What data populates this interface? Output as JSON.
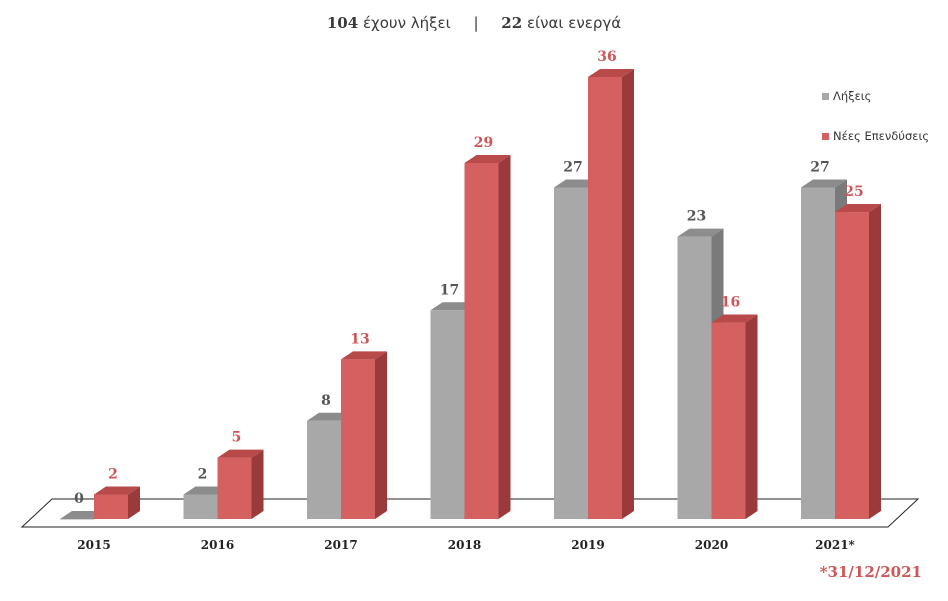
{
  "header": {
    "expired_count": "104",
    "expired_text": "έχουν λήξει",
    "separator": "|",
    "active_count": "22",
    "active_text": "είναι ενεργά"
  },
  "colors": {
    "expired": "#a8a8a8",
    "expired_side": "#7a7a7a",
    "expired_top": "#8c8c8c",
    "new": "#d46060",
    "new_side": "#9a3a3a",
    "new_top": "#b84a4a",
    "expired_label": "#555555",
    "new_label": "#d05555"
  },
  "legend": {
    "expired": "Λήξεις",
    "new": "Νέες Επενδύσεις"
  },
  "footnote": "*31/12/2021",
  "chart_data": {
    "type": "bar",
    "categories": [
      "2015",
      "2016",
      "2017",
      "2018",
      "2019",
      "2020",
      "2021*"
    ],
    "series": [
      {
        "name": "Λήξεις",
        "values": [
          0,
          2,
          8,
          17,
          27,
          23,
          27
        ]
      },
      {
        "name": "Νέες Επενδύσεις",
        "values": [
          2,
          5,
          13,
          29,
          36,
          16,
          25
        ]
      }
    ],
    "ylim": [
      0,
      36
    ],
    "legend_position": "right",
    "grid": false
  }
}
